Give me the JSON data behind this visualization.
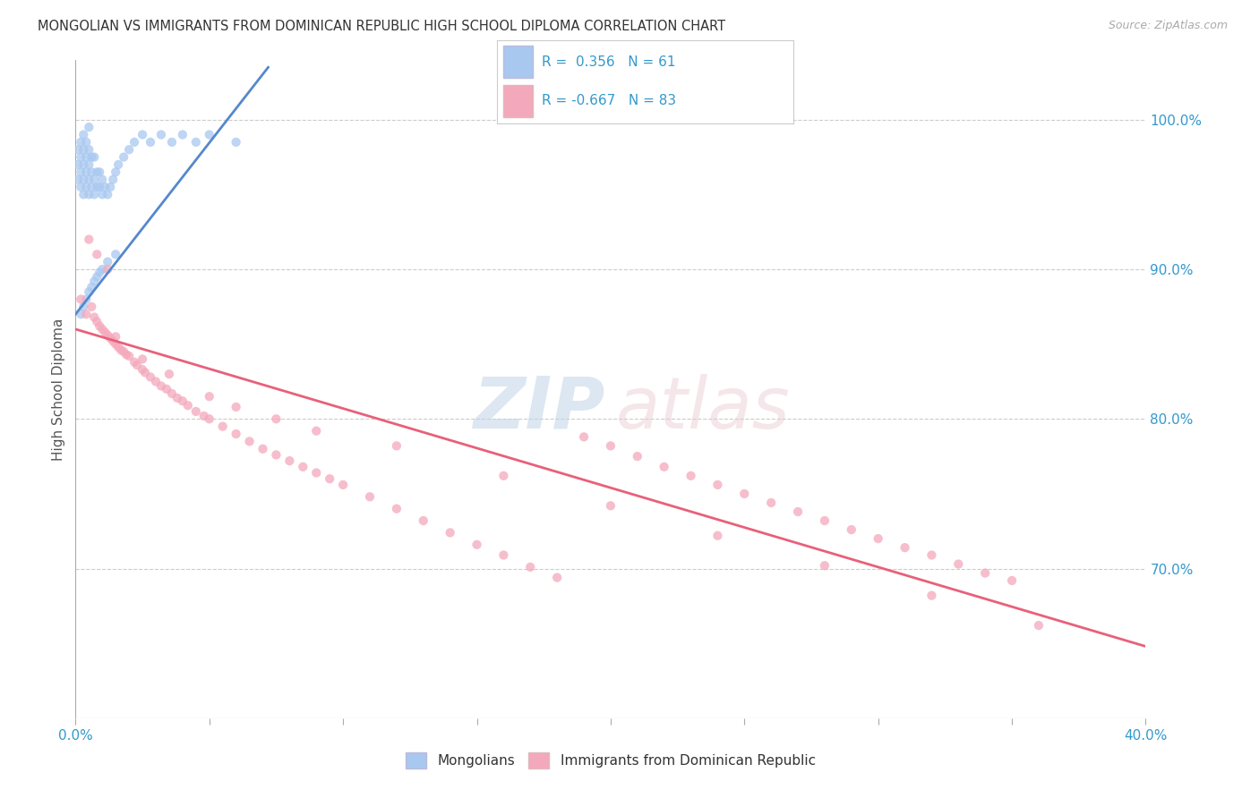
{
  "title": "MONGOLIAN VS IMMIGRANTS FROM DOMINICAN REPUBLIC HIGH SCHOOL DIPLOMA CORRELATION CHART",
  "source": "Source: ZipAtlas.com",
  "ylabel": "High School Diploma",
  "xlim": [
    0.0,
    0.4
  ],
  "ylim": [
    0.6,
    1.04
  ],
  "right_yticks": [
    1.0,
    0.9,
    0.8,
    0.7
  ],
  "right_ytick_labels": [
    "100.0%",
    "90.0%",
    "80.0%",
    "70.0%"
  ],
  "blue_color": "#A8C8F0",
  "pink_color": "#F4A8BC",
  "blue_line_color": "#5588CC",
  "pink_line_color": "#E8607A",
  "watermark_zip": "ZIP",
  "watermark_atlas": "atlas",
  "blue_scatter_x": [
    0.001,
    0.001,
    0.001,
    0.002,
    0.002,
    0.002,
    0.002,
    0.003,
    0.003,
    0.003,
    0.003,
    0.003,
    0.004,
    0.004,
    0.004,
    0.004,
    0.005,
    0.005,
    0.005,
    0.005,
    0.005,
    0.006,
    0.006,
    0.006,
    0.007,
    0.007,
    0.007,
    0.008,
    0.008,
    0.009,
    0.009,
    0.01,
    0.01,
    0.011,
    0.012,
    0.013,
    0.014,
    0.015,
    0.016,
    0.018,
    0.02,
    0.022,
    0.025,
    0.028,
    0.032,
    0.036,
    0.04,
    0.045,
    0.05,
    0.06,
    0.002,
    0.003,
    0.004,
    0.005,
    0.006,
    0.007,
    0.008,
    0.009,
    0.01,
    0.012,
    0.015
  ],
  "blue_scatter_y": [
    0.96,
    0.97,
    0.98,
    0.955,
    0.965,
    0.975,
    0.985,
    0.95,
    0.96,
    0.97,
    0.98,
    0.99,
    0.955,
    0.965,
    0.975,
    0.985,
    0.95,
    0.96,
    0.97,
    0.98,
    0.995,
    0.955,
    0.965,
    0.975,
    0.95,
    0.96,
    0.975,
    0.955,
    0.965,
    0.955,
    0.965,
    0.95,
    0.96,
    0.955,
    0.95,
    0.955,
    0.96,
    0.965,
    0.97,
    0.975,
    0.98,
    0.985,
    0.99,
    0.985,
    0.99,
    0.985,
    0.99,
    0.985,
    0.99,
    0.985,
    0.87,
    0.875,
    0.88,
    0.885,
    0.888,
    0.892,
    0.895,
    0.898,
    0.9,
    0.905,
    0.91
  ],
  "pink_scatter_x": [
    0.002,
    0.004,
    0.006,
    0.007,
    0.008,
    0.009,
    0.01,
    0.011,
    0.012,
    0.013,
    0.014,
    0.015,
    0.016,
    0.017,
    0.018,
    0.019,
    0.02,
    0.022,
    0.023,
    0.025,
    0.026,
    0.028,
    0.03,
    0.032,
    0.034,
    0.036,
    0.038,
    0.04,
    0.042,
    0.045,
    0.048,
    0.05,
    0.055,
    0.06,
    0.065,
    0.07,
    0.075,
    0.08,
    0.085,
    0.09,
    0.095,
    0.1,
    0.11,
    0.12,
    0.13,
    0.14,
    0.15,
    0.16,
    0.17,
    0.18,
    0.19,
    0.2,
    0.21,
    0.22,
    0.23,
    0.24,
    0.25,
    0.26,
    0.27,
    0.28,
    0.29,
    0.3,
    0.31,
    0.32,
    0.33,
    0.34,
    0.35,
    0.008,
    0.015,
    0.025,
    0.035,
    0.05,
    0.06,
    0.075,
    0.09,
    0.12,
    0.16,
    0.2,
    0.24,
    0.28,
    0.32,
    0.36,
    0.005,
    0.012
  ],
  "pink_scatter_y": [
    0.88,
    0.87,
    0.875,
    0.868,
    0.865,
    0.862,
    0.86,
    0.858,
    0.856,
    0.854,
    0.852,
    0.85,
    0.848,
    0.846,
    0.845,
    0.843,
    0.842,
    0.838,
    0.836,
    0.833,
    0.831,
    0.828,
    0.825,
    0.822,
    0.82,
    0.817,
    0.814,
    0.812,
    0.809,
    0.805,
    0.802,
    0.8,
    0.795,
    0.79,
    0.785,
    0.78,
    0.776,
    0.772,
    0.768,
    0.764,
    0.76,
    0.756,
    0.748,
    0.74,
    0.732,
    0.724,
    0.716,
    0.709,
    0.701,
    0.694,
    0.788,
    0.782,
    0.775,
    0.768,
    0.762,
    0.756,
    0.75,
    0.744,
    0.738,
    0.732,
    0.726,
    0.72,
    0.714,
    0.709,
    0.703,
    0.697,
    0.692,
    0.91,
    0.855,
    0.84,
    0.83,
    0.815,
    0.808,
    0.8,
    0.792,
    0.782,
    0.762,
    0.742,
    0.722,
    0.702,
    0.682,
    0.662,
    0.92,
    0.9
  ],
  "blue_line_x": [
    0.0,
    0.072
  ],
  "blue_line_y": [
    0.87,
    1.035
  ],
  "pink_line_x": [
    0.0,
    0.4
  ],
  "pink_line_y": [
    0.86,
    0.648
  ]
}
